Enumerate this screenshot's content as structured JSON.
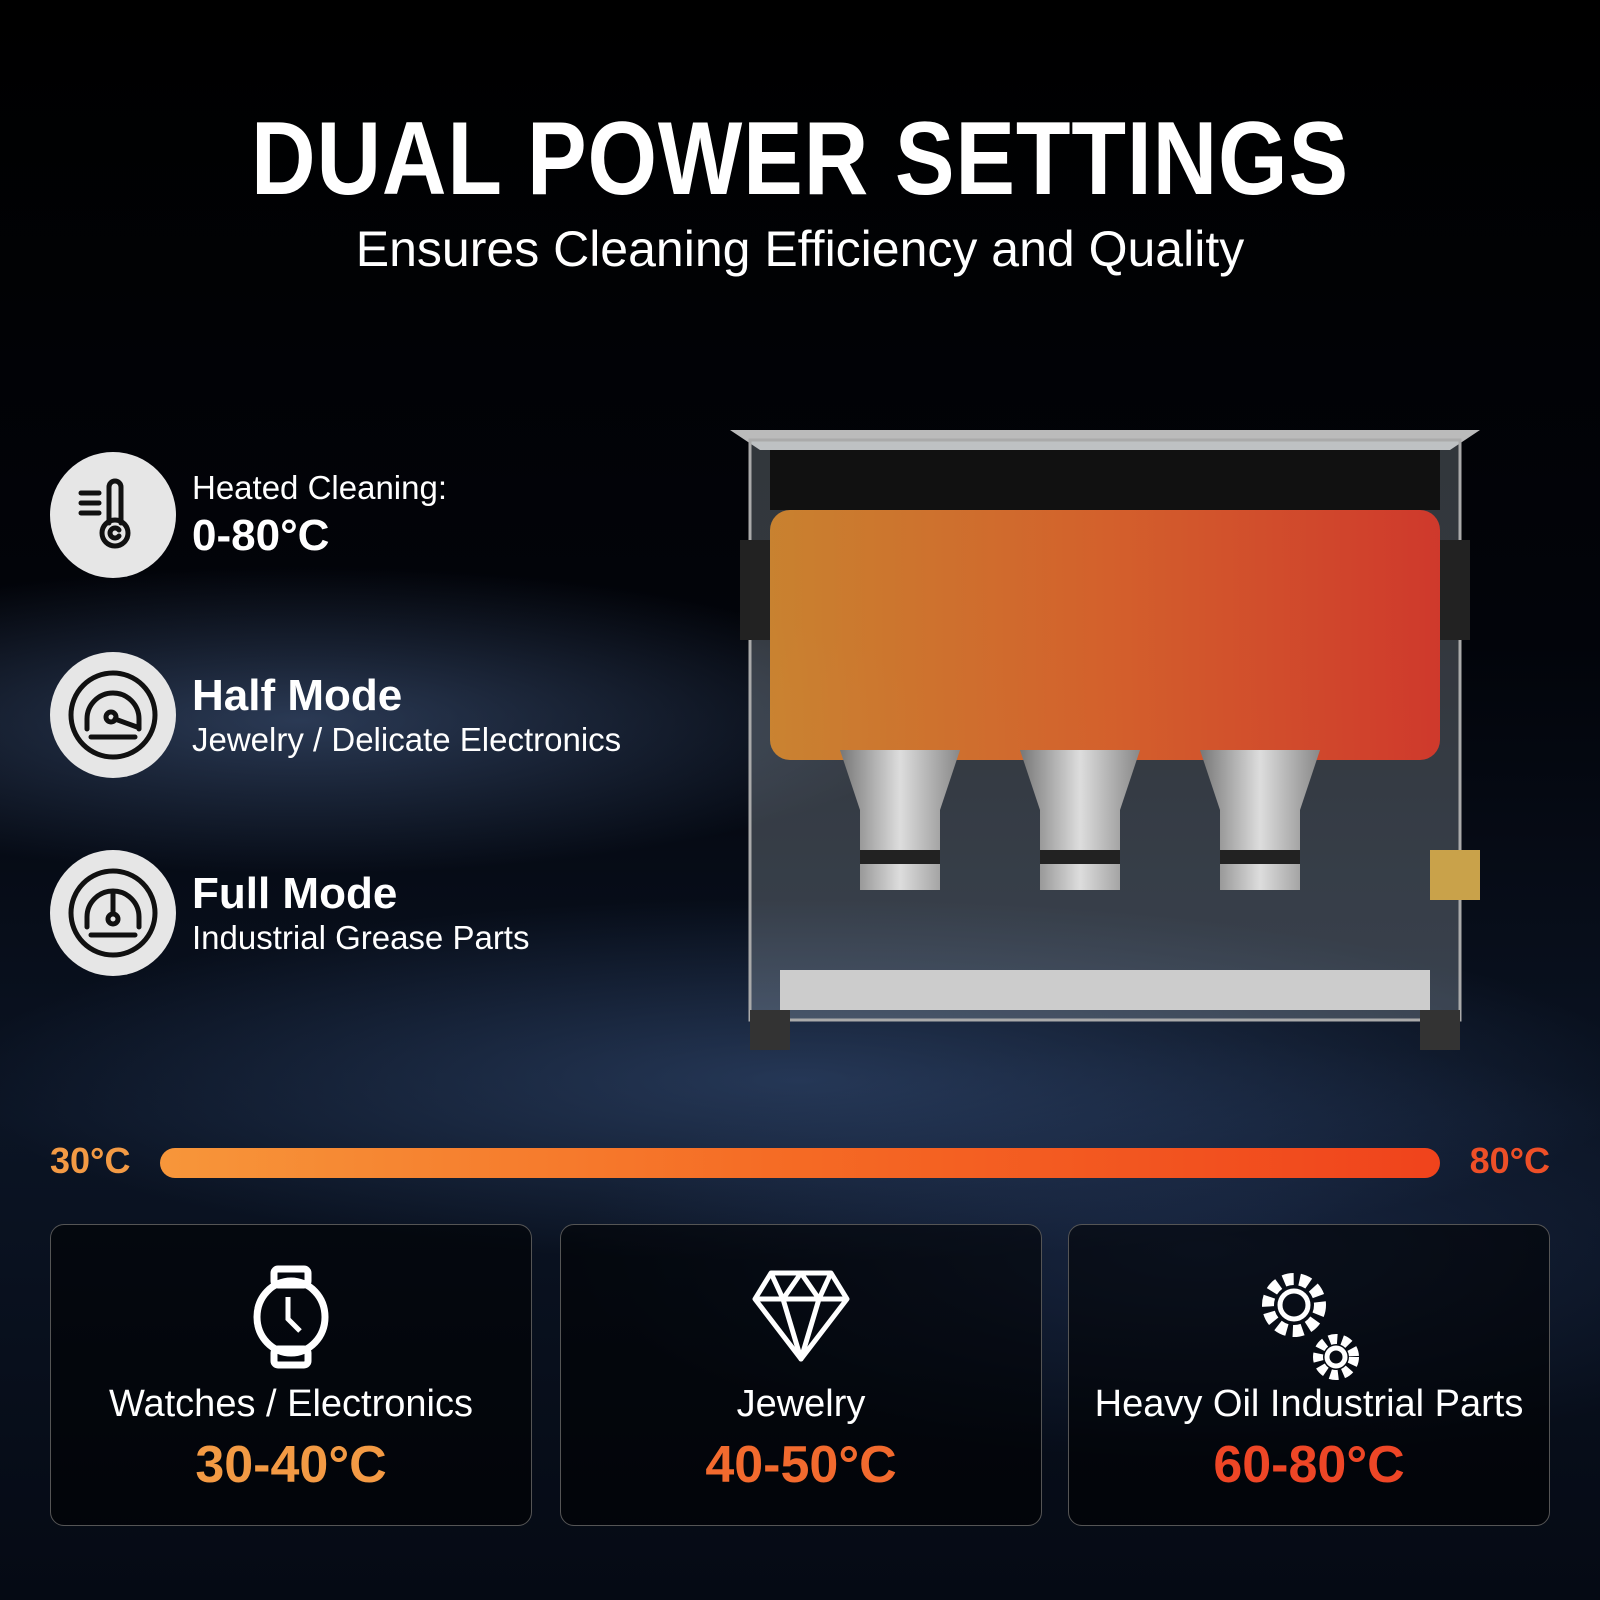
{
  "header": {
    "title": "DUAL POWER SETTINGS",
    "subtitle": "Ensures Cleaning Efficiency and Quality"
  },
  "features": [
    {
      "icon": "thermometer-icon",
      "label": "Heated Cleaning:",
      "value": "0-80°C"
    },
    {
      "icon": "half-gauge-icon",
      "label": "Half Mode",
      "value": "Jewelry / Delicate Electronics"
    },
    {
      "icon": "full-gauge-icon",
      "label": "Full Mode",
      "value": "Industrial Grease Parts"
    }
  ],
  "temperature_bar": {
    "min_label": "30°C",
    "max_label": "80°C",
    "colors": [
      "#f7963a",
      "#f0431c"
    ]
  },
  "cards": [
    {
      "icon": "watch-icon",
      "name": "Watches / Electronics",
      "temp": "30-40°C",
      "color": "#f39a44"
    },
    {
      "icon": "diamond-icon",
      "name": "Jewelry",
      "temp": "40-50°C",
      "color": "#f26a2e"
    },
    {
      "icon": "gears-icon",
      "name": "Heavy Oil Industrial Parts",
      "temp": "60-80°C",
      "color": "#ee4626"
    }
  ]
}
